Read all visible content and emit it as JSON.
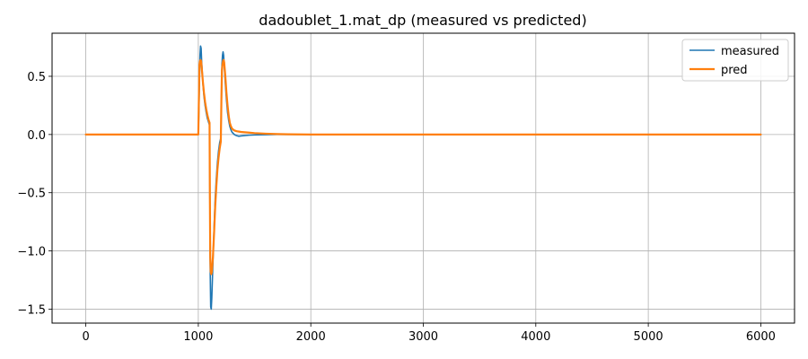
{
  "chart_data": {
    "type": "line",
    "title": "dadoublet_1.mat_dp  (measured vs predicted)",
    "xlabel": "",
    "ylabel": "",
    "xlim": [
      -300,
      6300
    ],
    "ylim": [
      -1.62,
      0.87
    ],
    "xticks": [
      0,
      1000,
      2000,
      3000,
      4000,
      5000,
      6000
    ],
    "yticks": [
      -1.5,
      -1.0,
      -0.5,
      0.0,
      0.5
    ],
    "xtick_labels": [
      "0",
      "1000",
      "2000",
      "3000",
      "4000",
      "5000",
      "6000"
    ],
    "ytick_labels": [
      "−1.5",
      "−1.0",
      "−0.5",
      "0.0",
      "0.5"
    ],
    "grid": true,
    "legend_position": "top-right",
    "series": [
      {
        "name": "measured",
        "color": "#1f77b4",
        "x": [
          0,
          1000,
          1005,
          1010,
          1015,
          1020,
          1025,
          1030,
          1040,
          1050,
          1060,
          1070,
          1080,
          1090,
          1100,
          1103,
          1106,
          1110,
          1115,
          1120,
          1125,
          1130,
          1140,
          1150,
          1160,
          1170,
          1180,
          1190,
          1200,
          1206,
          1210,
          1215,
          1220,
          1225,
          1230,
          1240,
          1250,
          1260,
          1270,
          1280,
          1290,
          1300,
          1320,
          1340,
          1360,
          1380,
          1400,
          1450,
          1500,
          1600,
          1700,
          1800,
          2000,
          2500,
          3000,
          4000,
          5000,
          6000
        ],
        "y": [
          0.0,
          0.0,
          0.2,
          0.45,
          0.68,
          0.76,
          0.74,
          0.62,
          0.45,
          0.33,
          0.25,
          0.19,
          0.14,
          0.11,
          0.08,
          -0.6,
          -1.2,
          -1.48,
          -1.5,
          -1.4,
          -1.25,
          -1.1,
          -0.8,
          -0.55,
          -0.38,
          -0.24,
          -0.14,
          -0.07,
          -0.03,
          0.3,
          0.6,
          0.68,
          0.71,
          0.68,
          0.6,
          0.44,
          0.3,
          0.19,
          0.12,
          0.07,
          0.04,
          0.02,
          0.0,
          -0.01,
          -0.015,
          -0.012,
          -0.01,
          -0.006,
          -0.004,
          -0.002,
          0.0,
          0.0,
          0.0,
          0.0,
          0.0,
          0.0,
          0.0,
          0.0
        ]
      },
      {
        "name": "pred",
        "color": "#ff7f0e",
        "x": [
          0,
          1000,
          1005,
          1010,
          1015,
          1020,
          1025,
          1030,
          1040,
          1050,
          1060,
          1070,
          1080,
          1090,
          1100,
          1103,
          1106,
          1110,
          1115,
          1120,
          1125,
          1130,
          1140,
          1150,
          1160,
          1170,
          1180,
          1190,
          1200,
          1206,
          1210,
          1215,
          1220,
          1225,
          1230,
          1240,
          1250,
          1260,
          1270,
          1280,
          1290,
          1300,
          1320,
          1340,
          1360,
          1380,
          1400,
          1450,
          1500,
          1600,
          1700,
          1800,
          2000,
          2500,
          3000,
          4000,
          5000,
          6000
        ],
        "y": [
          0.0,
          0.0,
          0.3,
          0.6,
          0.63,
          0.64,
          0.63,
          0.58,
          0.46,
          0.36,
          0.28,
          0.22,
          0.17,
          0.13,
          0.1,
          -0.55,
          -1.05,
          -1.18,
          -1.2,
          -1.18,
          -1.12,
          -1.05,
          -0.85,
          -0.62,
          -0.45,
          -0.3,
          -0.2,
          -0.12,
          -0.06,
          0.35,
          0.55,
          0.6,
          0.63,
          0.64,
          0.62,
          0.5,
          0.36,
          0.25,
          0.16,
          0.1,
          0.07,
          0.05,
          0.035,
          0.028,
          0.025,
          0.022,
          0.02,
          0.016,
          0.012,
          0.007,
          0.004,
          0.002,
          0.0,
          0.0,
          0.0,
          0.0,
          0.0,
          0.0
        ]
      }
    ]
  }
}
